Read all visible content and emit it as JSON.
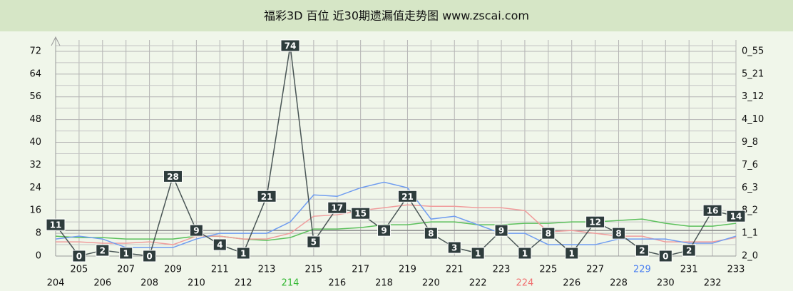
{
  "chart_data": {
    "type": "line",
    "title": "福彩3D 百位 近30期遗漏值走势图 www.zscai.com",
    "categories": [
      "204",
      "205",
      "206",
      "207",
      "208",
      "209",
      "210",
      "211",
      "212",
      "213",
      "214",
      "215",
      "216",
      "217",
      "218",
      "219",
      "220",
      "221",
      "222",
      "223",
      "224",
      "225",
      "226",
      "227",
      "228",
      "229",
      "230",
      "231",
      "232",
      "233"
    ],
    "category_colors": [
      "#111",
      "#111",
      "#111",
      "#111",
      "#111",
      "#111",
      "#111",
      "#111",
      "#111",
      "#111",
      "#33b833",
      "#111",
      "#111",
      "#111",
      "#111",
      "#111",
      "#111",
      "#111",
      "#111",
      "#111",
      "#f07070",
      "#111",
      "#111",
      "#111",
      "#111",
      "#4a7ff0",
      "#111",
      "#111",
      "#111",
      "#111"
    ],
    "series": [
      {
        "color": "#4a5656",
        "labeled": true,
        "values": [
          11,
          0,
          2,
          1,
          0,
          28,
          9,
          4,
          1,
          21,
          74,
          5,
          17,
          15,
          9,
          21,
          8,
          3,
          1,
          9,
          1,
          8,
          1,
          12,
          8,
          2,
          0,
          2,
          16,
          14
        ]
      },
      {
        "color": "#6f9cf0",
        "values": [
          6,
          7,
          6,
          3,
          3,
          3,
          6,
          8,
          8,
          8,
          12,
          21.5,
          21,
          24,
          26,
          24,
          13,
          14,
          11,
          8,
          8,
          4,
          4,
          4,
          6,
          6,
          6,
          4.5,
          4.5,
          7
        ]
      },
      {
        "color": "#f09c9c",
        "values": [
          5,
          5,
          4.5,
          4.5,
          5,
          4,
          7,
          7,
          6,
          6,
          8,
          14,
          14.5,
          16,
          17,
          18,
          17.5,
          17.5,
          17,
          17,
          16,
          8.5,
          9,
          8,
          7,
          7,
          5,
          5,
          5,
          6.5
        ]
      },
      {
        "color": "#5cc05c",
        "values": [
          7,
          6.5,
          6.5,
          6,
          6,
          6,
          7,
          7,
          6,
          5.5,
          6.5,
          9.5,
          9.5,
          10,
          11,
          11,
          12,
          12,
          11,
          11,
          11.5,
          11.5,
          12,
          12,
          12.5,
          13,
          11.5,
          10.5,
          10.5,
          11.5
        ]
      }
    ],
    "reference_line": {
      "value": 9,
      "color": "#8a8a8a"
    },
    "ylim": [
      0,
      76
    ],
    "yticks": [
      0,
      8,
      16,
      24,
      32,
      40,
      48,
      56,
      64,
      72
    ],
    "right_labels": [
      "2_0",
      "1_1",
      "8_2",
      "6_3",
      "7_6",
      "9_8",
      "4_10",
      "3_12",
      "5_21",
      "0_55"
    ],
    "grid": true
  }
}
